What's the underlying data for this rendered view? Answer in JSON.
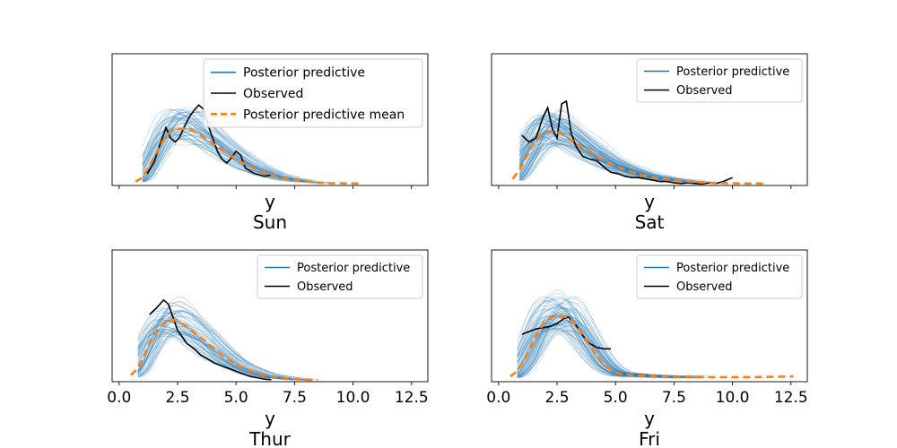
{
  "figure": {
    "background": "#ffffff"
  },
  "styles": {
    "posterior_color": "#1f77b4",
    "observed_color": "#000000",
    "mean_color": "#ff7f0e"
  },
  "chart_data": [
    {
      "type": "line",
      "title": "Sun",
      "xlabel": "y",
      "xlim": [
        -0.3,
        13.2
      ],
      "ylim": [
        0,
        1
      ],
      "y_ticks_visible": false,
      "x_tick_labels_visible": false,
      "xticks": [
        0.0,
        2.5,
        5.0,
        7.5,
        10.0,
        12.5
      ],
      "legend": {
        "position": "top-right",
        "entries": [
          "Posterior predictive",
          "Observed",
          "Posterior predictive mean"
        ]
      },
      "posterior_curves": 60,
      "series": [
        {
          "name": "Observed",
          "x": [
            1.2,
            1.5,
            1.8,
            2.0,
            2.2,
            2.4,
            2.6,
            2.8,
            3.0,
            3.2,
            3.4,
            3.6,
            3.8,
            4.0,
            4.2,
            4.4,
            4.6,
            4.8,
            5.0,
            5.2,
            5.4,
            5.6,
            5.8,
            6.2,
            6.6
          ],
          "y": [
            0.09,
            0.18,
            0.34,
            0.44,
            0.36,
            0.33,
            0.37,
            0.45,
            0.52,
            0.57,
            0.61,
            0.58,
            0.46,
            0.36,
            0.26,
            0.2,
            0.17,
            0.21,
            0.26,
            0.23,
            0.13,
            0.11,
            0.09,
            0.07,
            0.08
          ]
        },
        {
          "name": "Posterior predictive mean",
          "x": [
            0.7,
            1.0,
            1.3,
            1.6,
            1.9,
            2.2,
            2.5,
            2.8,
            3.1,
            3.5,
            4.0,
            4.5,
            5.0,
            5.5,
            6.0,
            6.5,
            7.0,
            7.5,
            8.0,
            8.5,
            9.0,
            9.5,
            10.3
          ],
          "y": [
            0.03,
            0.06,
            0.15,
            0.25,
            0.35,
            0.41,
            0.43,
            0.43,
            0.42,
            0.38,
            0.32,
            0.26,
            0.2,
            0.15,
            0.11,
            0.08,
            0.055,
            0.04,
            0.03,
            0.022,
            0.018,
            0.016,
            0.015
          ]
        }
      ]
    },
    {
      "type": "line",
      "title": "Sat",
      "xlabel": "y",
      "xlim": [
        -0.3,
        13.2
      ],
      "ylim": [
        0,
        1
      ],
      "y_ticks_visible": false,
      "x_tick_labels_visible": false,
      "xticks": [
        0.0,
        2.5,
        5.0,
        7.5,
        10.0,
        12.5
      ],
      "legend": {
        "position": "top-right",
        "entries": [
          "Posterior predictive",
          "Observed"
        ]
      },
      "posterior_curves": 80,
      "series": [
        {
          "name": "Observed",
          "x": [
            1.0,
            1.3,
            1.6,
            1.9,
            2.1,
            2.3,
            2.5,
            2.7,
            2.9,
            3.1,
            3.3,
            3.6,
            3.9,
            4.2,
            4.5,
            4.8,
            5.1,
            5.4,
            5.7,
            6.0,
            6.3,
            6.6,
            6.9,
            7.2,
            7.5,
            7.8,
            8.1,
            8.4,
            8.7,
            9.0,
            9.3,
            9.6,
            10.0
          ],
          "y": [
            0.38,
            0.33,
            0.36,
            0.52,
            0.59,
            0.43,
            0.36,
            0.62,
            0.64,
            0.4,
            0.3,
            0.22,
            0.2,
            0.19,
            0.14,
            0.1,
            0.09,
            0.07,
            0.06,
            0.06,
            0.05,
            0.04,
            0.03,
            0.03,
            0.02,
            0.015,
            0.02,
            0.015,
            0.01,
            0.02,
            0.015,
            0.03,
            0.06
          ]
        },
        {
          "name": "Posterior predictive mean",
          "x": [
            0.6,
            0.9,
            1.2,
            1.5,
            1.8,
            2.1,
            2.4,
            2.7,
            3.0,
            3.4,
            3.8,
            4.3,
            4.8,
            5.4,
            6.0,
            6.6,
            7.2,
            7.8,
            8.5,
            9.2,
            10.0,
            10.7,
            11.5
          ],
          "y": [
            0.05,
            0.12,
            0.22,
            0.32,
            0.38,
            0.41,
            0.41,
            0.39,
            0.36,
            0.31,
            0.27,
            0.21,
            0.16,
            0.12,
            0.085,
            0.06,
            0.045,
            0.035,
            0.025,
            0.02,
            0.016,
            0.015,
            0.015
          ]
        }
      ]
    },
    {
      "type": "line",
      "title": "Thur",
      "xlabel": "y",
      "xlim": [
        -0.3,
        13.2
      ],
      "ylim": [
        0,
        1
      ],
      "y_ticks_visible": false,
      "x_tick_labels_visible": true,
      "xticks": [
        0.0,
        2.5,
        5.0,
        7.5,
        10.0,
        12.5
      ],
      "xtick_labels": [
        "0.0",
        "2.5",
        "5.0",
        "7.5",
        "10.0",
        "12.5"
      ],
      "legend": {
        "position": "top-right",
        "entries": [
          "Posterior predictive",
          "Observed"
        ]
      },
      "posterior_curves": 60,
      "series": [
        {
          "name": "Observed",
          "x": [
            1.3,
            1.6,
            1.9,
            2.1,
            2.3,
            2.5,
            2.7,
            2.9,
            3.2,
            3.5,
            3.8,
            4.1,
            4.4,
            4.7,
            5.0,
            5.3,
            5.6,
            5.9,
            6.2,
            6.5
          ],
          "y": [
            0.51,
            0.56,
            0.62,
            0.59,
            0.49,
            0.39,
            0.34,
            0.29,
            0.25,
            0.2,
            0.17,
            0.14,
            0.12,
            0.1,
            0.08,
            0.06,
            0.04,
            0.03,
            0.02,
            0.015
          ]
        },
        {
          "name": "Posterior predictive mean",
          "x": [
            0.5,
            0.8,
            1.1,
            1.4,
            1.7,
            2.0,
            2.3,
            2.6,
            2.9,
            3.2,
            3.6,
            4.0,
            4.5,
            5.0,
            5.5,
            6.0,
            6.5,
            7.0,
            7.5,
            8.0,
            8.5
          ],
          "y": [
            0.05,
            0.1,
            0.21,
            0.33,
            0.41,
            0.46,
            0.47,
            0.45,
            0.42,
            0.37,
            0.32,
            0.26,
            0.19,
            0.13,
            0.09,
            0.06,
            0.04,
            0.03,
            0.02,
            0.015,
            0.012
          ]
        }
      ]
    },
    {
      "type": "line",
      "title": "Fri",
      "xlabel": "y",
      "xlim": [
        -0.3,
        13.2
      ],
      "ylim": [
        0,
        1
      ],
      "y_ticks_visible": false,
      "x_tick_labels_visible": true,
      "xticks": [
        0.0,
        2.5,
        5.0,
        7.5,
        10.0,
        12.5
      ],
      "xtick_labels": [
        "0.0",
        "2.5",
        "5.0",
        "7.5",
        "10.0",
        "12.5"
      ],
      "legend": {
        "position": "top-right",
        "entries": [
          "Posterior predictive",
          "Observed"
        ]
      },
      "posterior_curves": 70,
      "series": [
        {
          "name": "Observed",
          "x": [
            1.0,
            1.3,
            1.6,
            1.9,
            2.2,
            2.5,
            2.8,
            3.0,
            3.3,
            3.6,
            3.9,
            4.2,
            4.5,
            4.8
          ],
          "y": [
            0.36,
            0.38,
            0.4,
            0.41,
            0.42,
            0.44,
            0.48,
            0.49,
            0.43,
            0.35,
            0.29,
            0.26,
            0.25,
            0.25
          ]
        },
        {
          "name": "Posterior predictive mean",
          "x": [
            0.5,
            0.8,
            1.1,
            1.4,
            1.7,
            2.0,
            2.3,
            2.6,
            2.9,
            3.2,
            3.5,
            3.8,
            4.1,
            4.4,
            4.7,
            5.0,
            5.3,
            5.7,
            6.2,
            6.8,
            7.5,
            8.5,
            10.0,
            11.0,
            12.6
          ],
          "y": [
            0.04,
            0.08,
            0.16,
            0.27,
            0.38,
            0.46,
            0.49,
            0.5,
            0.49,
            0.45,
            0.38,
            0.3,
            0.22,
            0.15,
            0.1,
            0.07,
            0.055,
            0.05,
            0.045,
            0.04,
            0.035,
            0.035,
            0.035,
            0.035,
            0.04
          ]
        }
      ]
    }
  ]
}
